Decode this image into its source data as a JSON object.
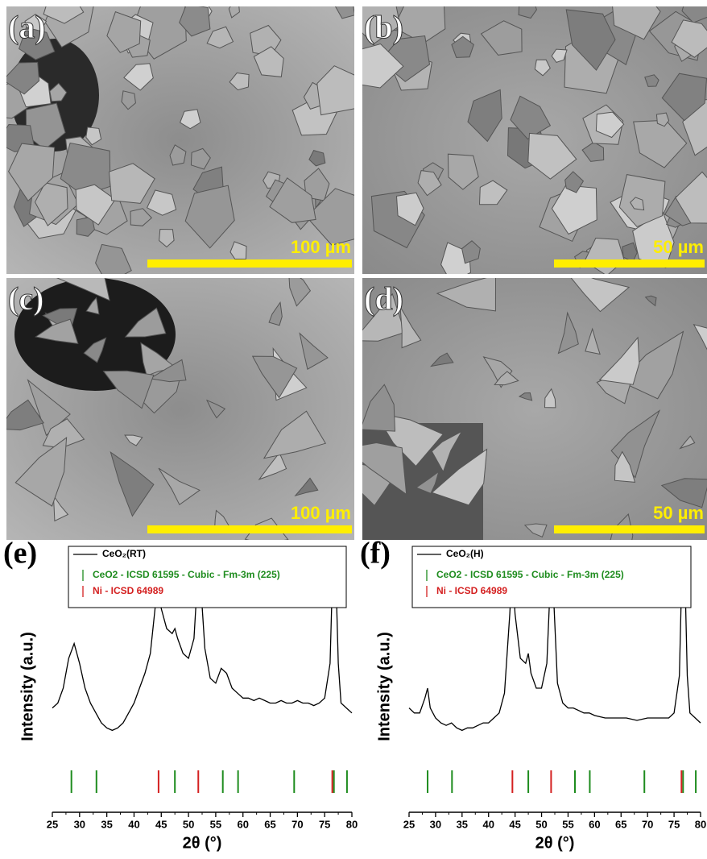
{
  "panels": [
    {
      "label": "(a)",
      "scale_bar": "100 µm"
    },
    {
      "label": "(b)",
      "scale_bar": "50 µm"
    },
    {
      "label": "(c)",
      "scale_bar": "100 µm"
    },
    {
      "label": "(d)",
      "scale_bar": "50 µm"
    }
  ],
  "chart_data": [
    {
      "type": "line",
      "panel_label": "(e)",
      "xlabel": "2θ (°)",
      "ylabel": "Intensity (a.u.)",
      "xlim": [
        25,
        80
      ],
      "xticks": [
        25,
        30,
        35,
        40,
        45,
        50,
        55,
        60,
        65,
        70,
        75,
        80
      ],
      "ylim": [
        0,
        100
      ],
      "series": [
        {
          "name": "CeO₂(RT)",
          "color": "#000000",
          "x": [
            25,
            26,
            27,
            28,
            29,
            30,
            31,
            32,
            33,
            34,
            35,
            36,
            37,
            38,
            39,
            40,
            41,
            42,
            43,
            44,
            44.5,
            45,
            46,
            47,
            47.5,
            48,
            49,
            50,
            51,
            51.8,
            52,
            53,
            54,
            55,
            56,
            57,
            58,
            59,
            60,
            61,
            62,
            63,
            64,
            65,
            66,
            67,
            68,
            69,
            70,
            71,
            72,
            73,
            74,
            75,
            76,
            76.5,
            77,
            77.5,
            78,
            79,
            80
          ],
          "values": [
            42,
            44,
            50,
            62,
            68,
            60,
            50,
            44,
            40,
            36,
            34,
            33,
            34,
            36,
            40,
            44,
            50,
            56,
            64,
            85,
            100,
            82,
            74,
            72,
            74,
            70,
            64,
            62,
            70,
            100,
            100,
            66,
            54,
            52,
            58,
            56,
            50,
            48,
            46,
            46,
            45,
            46,
            45,
            44,
            44,
            45,
            44,
            44,
            45,
            44,
            44,
            43,
            44,
            46,
            60,
            100,
            100,
            60,
            44,
            42,
            40
          ]
        }
      ],
      "references": [
        {
          "name": "CeO2 - ICSD 61595 - Cubic - Fm-3m (225)",
          "color": "#1e8c1e",
          "positions": [
            28.5,
            33.1,
            47.5,
            56.3,
            59.1,
            69.4,
            76.7,
            79.1
          ]
        },
        {
          "name": "Ni - ICSD 64989",
          "color": "#d42020",
          "positions": [
            44.5,
            51.8,
            76.4
          ]
        }
      ]
    },
    {
      "type": "line",
      "panel_label": "(f)",
      "xlabel": "2θ (°)",
      "ylabel": "Intensity (a.u.)",
      "xlim": [
        25,
        80
      ],
      "xticks": [
        25,
        30,
        35,
        40,
        45,
        50,
        55,
        60,
        65,
        70,
        75,
        80
      ],
      "ylim": [
        0,
        100
      ],
      "series": [
        {
          "name": "CeO₂(H)",
          "color": "#000000",
          "x": [
            25,
            26,
            27,
            28,
            28.5,
            29,
            30,
            31,
            32,
            33,
            34,
            35,
            36,
            37,
            38,
            39,
            40,
            41,
            42,
            43,
            44,
            44.5,
            45,
            46,
            47,
            47.5,
            48,
            49,
            50,
            51,
            51.8,
            52,
            53,
            54,
            55,
            56,
            57,
            58,
            59,
            60,
            62,
            64,
            66,
            68,
            70,
            72,
            74,
            75,
            76,
            76.5,
            77,
            77.5,
            78,
            79,
            80
          ],
          "values": [
            42,
            40,
            40,
            46,
            50,
            42,
            38,
            36,
            35,
            36,
            34,
            33,
            34,
            34,
            35,
            36,
            36,
            38,
            40,
            48,
            80,
            100,
            80,
            62,
            60,
            64,
            56,
            50,
            50,
            60,
            100,
            100,
            52,
            44,
            42,
            42,
            41,
            40,
            40,
            39,
            38,
            38,
            38,
            37,
            38,
            38,
            38,
            40,
            55,
            100,
            100,
            55,
            40,
            38,
            36
          ]
        }
      ],
      "references": [
        {
          "name": "CeO2 - ICSD 61595 - Cubic - Fm-3m (225)",
          "color": "#1e8c1e",
          "positions": [
            28.5,
            33.1,
            47.5,
            56.3,
            59.1,
            69.4,
            76.7,
            79.1
          ]
        },
        {
          "name": "Ni - ICSD 64989",
          "color": "#d42020",
          "positions": [
            44.5,
            51.8,
            76.4
          ]
        }
      ]
    }
  ]
}
